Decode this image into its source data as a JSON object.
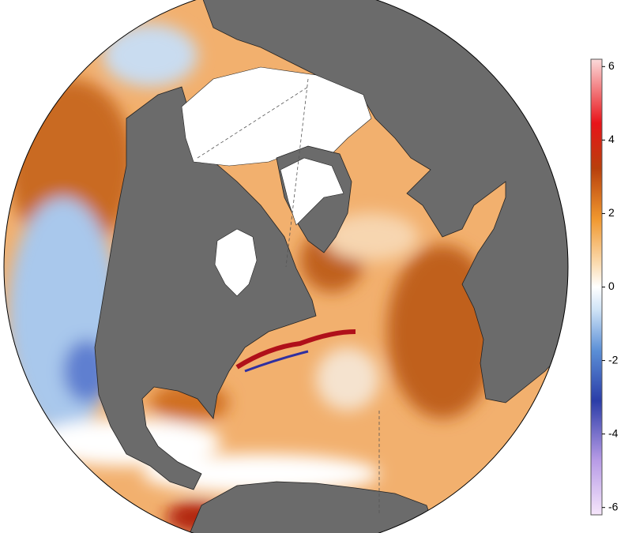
{
  "map": {
    "colorbar": {
      "range": [
        -6.2,
        6.2
      ],
      "ticks": [
        6,
        4,
        2,
        0,
        -2,
        -4,
        -6
      ]
    }
  }
}
